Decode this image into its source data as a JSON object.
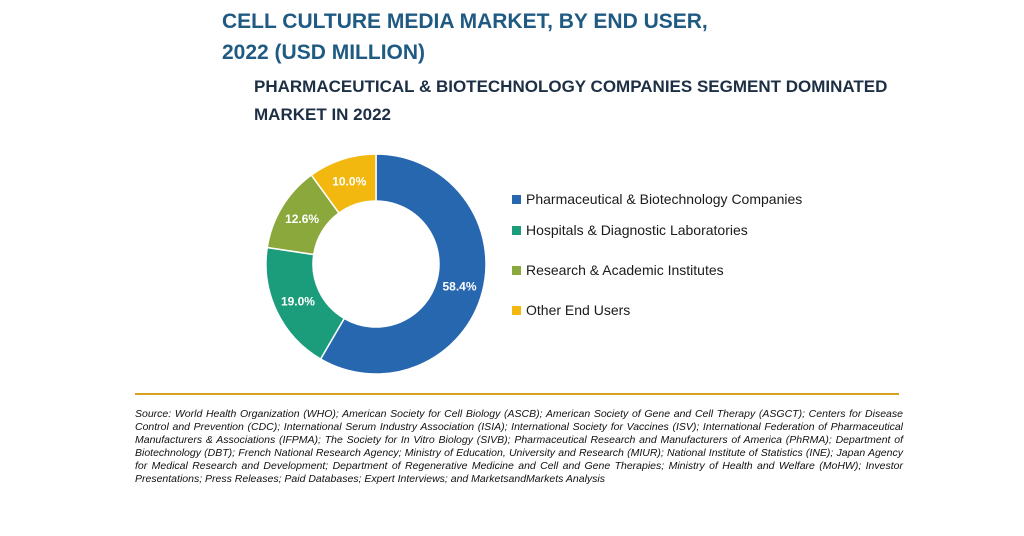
{
  "title_lines": [
    "CELL CULTURE MEDIA MARKET, BY END USER,",
    "2022 (USD MILLION)"
  ],
  "subtitle_lines": [
    "PHARMACEUTICAL & BIOTECHNOLOGY COMPANIES SEGMENT DOMINATED",
    "MARKET IN 2022"
  ],
  "chart_data": {
    "type": "pie",
    "variant": "donut",
    "categories": [
      "Pharmaceutical & Biotechnology Companies",
      "Hospitals & Diagnostic Laboratories",
      "Research & Academic Institutes",
      "Other End Users"
    ],
    "values": [
      58.4,
      19.0,
      12.6,
      10.0
    ],
    "value_labels": [
      "58.4%",
      "19.0%",
      "12.6%",
      "10.0%"
    ],
    "colors": [
      "#2667b0",
      "#1b9c7b",
      "#8aa83b",
      "#f2b80f"
    ],
    "legend_position": "right"
  },
  "source_text": "Source: World Health Organization (WHO); American Society for Cell Biology (ASCB); American Society of Gene and Cell Therapy (ASGCT); Centers for Disease Control and Prevention (CDC); International Serum Industry Association (ISIA); International Society for Vaccines (ISV); International Federation of Pharmaceutical Manufacturers & Associations (IFPMA); The Society for In Vitro Biology (SIVB); Pharmaceutical Research and Manufacturers of America (PhRMA); Department of Biotechnology (DBT); French National Research Agency; Ministry of Education, University and Research (MIUR); National Institute of Statistics (INE); Japan Agency for Medical Research and Development; Department of Regenerative Medicine and Cell and Gene Therapies; Ministry of Health and Welfare (MoHW); Investor Presentations; Press Releases; Paid Databases; Expert Interviews; and MarketsandMarkets Analysis"
}
